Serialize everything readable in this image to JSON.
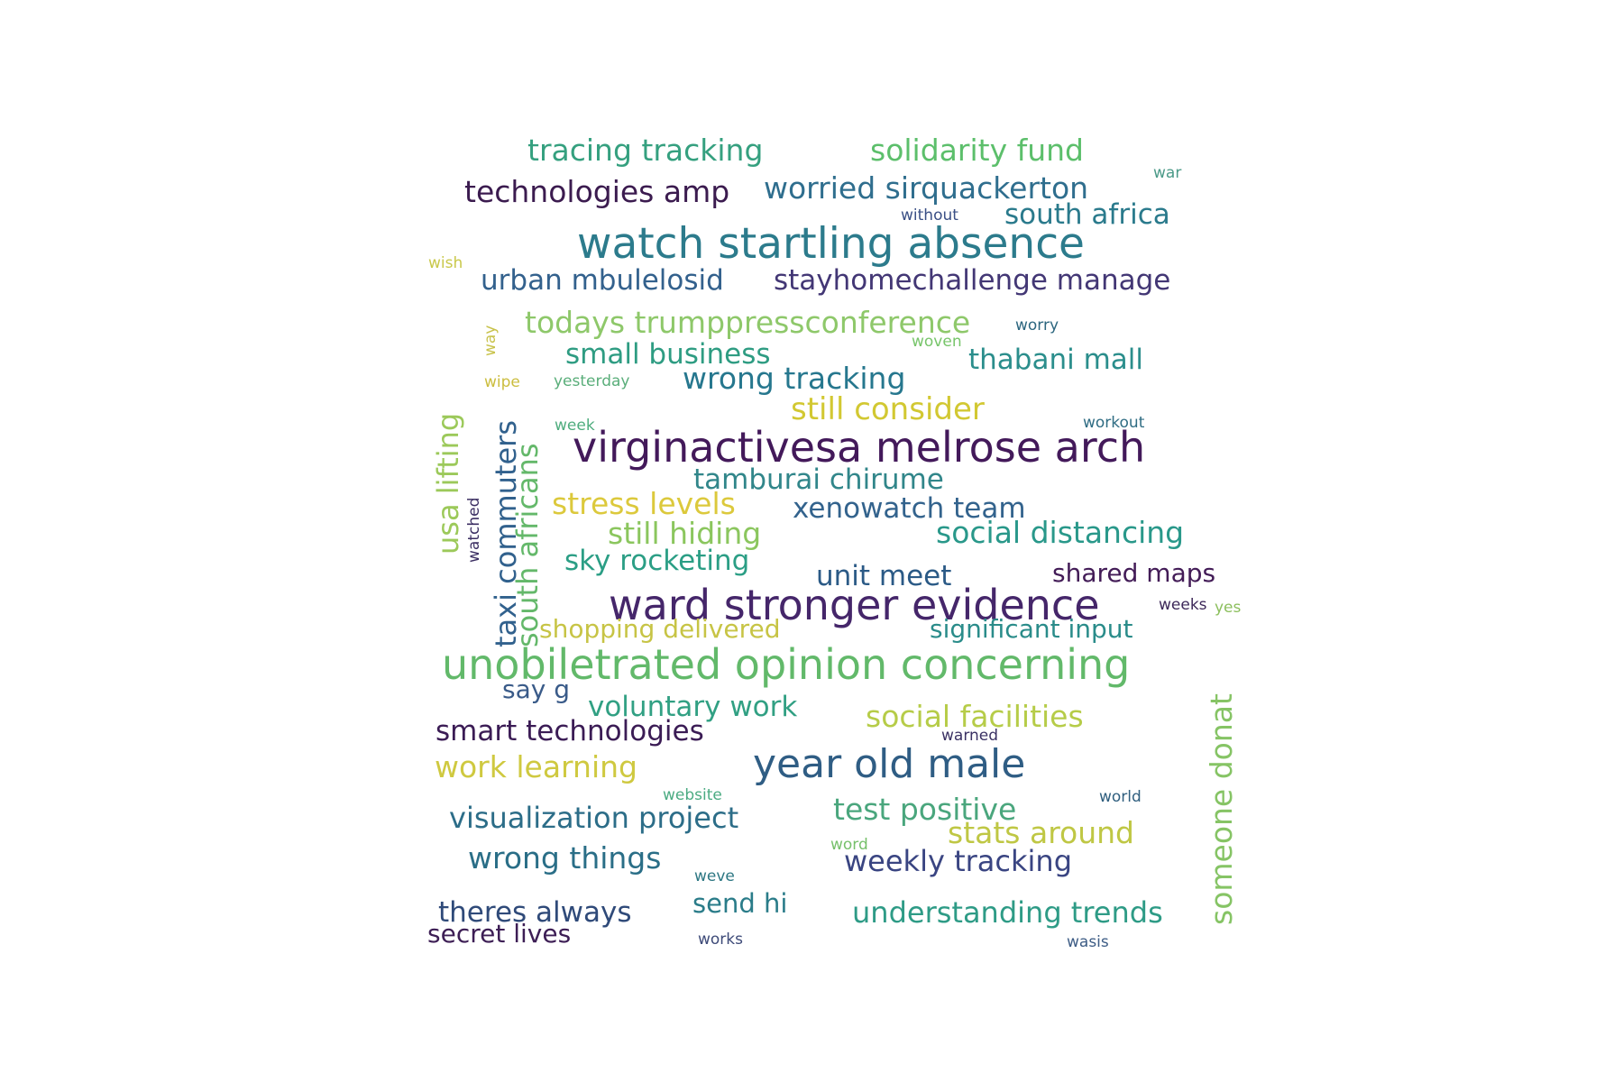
{
  "words": [
    {
      "text": "tracing tracking",
      "color": "#35a07f",
      "vertical": false
    },
    {
      "text": "solidarity fund",
      "color": "#5cbf6b",
      "vertical": false
    },
    {
      "text": "war",
      "color": "#4b9a88",
      "vertical": false
    },
    {
      "text": "technologies amp",
      "color": "#3b1b4f",
      "vertical": false
    },
    {
      "text": "worried sirquackerton",
      "color": "#2f6e8e",
      "vertical": false
    },
    {
      "text": "without",
      "color": "#3a4f85",
      "vertical": false
    },
    {
      "text": "south africa",
      "color": "#2a7a8c",
      "vertical": false
    },
    {
      "text": "watch startling absence",
      "color": "#2c7b8c",
      "vertical": false
    },
    {
      "text": "wish",
      "color": "#c9c84a",
      "vertical": false
    },
    {
      "text": "urban mbulelosid",
      "color": "#33618d",
      "vertical": false
    },
    {
      "text": "stayhomechallenge manage",
      "color": "#433775",
      "vertical": false
    },
    {
      "text": "todays trumppressconference",
      "color": "#8ec86a",
      "vertical": false
    },
    {
      "text": "worry",
      "color": "#2c667f",
      "vertical": false
    },
    {
      "text": "way",
      "color": "#c8c24a",
      "vertical": true
    },
    {
      "text": "woven",
      "color": "#77c56a",
      "vertical": false
    },
    {
      "text": "small business",
      "color": "#2e9c82",
      "vertical": false
    },
    {
      "text": "thabani mall",
      "color": "#2b8e8c",
      "vertical": false
    },
    {
      "text": "usa lifting",
      "color": "#9cc95a",
      "vertical": true
    },
    {
      "text": "wipe",
      "color": "#cbbd3e",
      "vertical": false
    },
    {
      "text": "yesterday",
      "color": "#5aae7a",
      "vertical": false
    },
    {
      "text": "wrong tracking",
      "color": "#26778e",
      "vertical": false
    },
    {
      "text": "still consider",
      "color": "#d2c832",
      "vertical": false
    },
    {
      "text": "week",
      "color": "#4fad7e",
      "vertical": false
    },
    {
      "text": "workout",
      "color": "#2f6c83",
      "vertical": false
    },
    {
      "text": "taxi commuters",
      "color": "#31618d",
      "vertical": true
    },
    {
      "text": "south africans",
      "color": "#64b86a",
      "vertical": true
    },
    {
      "text": "virginactivesa melrose arch",
      "color": "#43195a",
      "vertical": false
    },
    {
      "text": "tamburai chirume",
      "color": "#31868a",
      "vertical": false
    },
    {
      "text": "watched",
      "color": "#3b2e62",
      "vertical": true
    },
    {
      "text": "stress levels",
      "color": "#dcc93c",
      "vertical": false
    },
    {
      "text": "xenowatch team",
      "color": "#33638d",
      "vertical": false
    },
    {
      "text": "still hiding",
      "color": "#8bc65e",
      "vertical": false
    },
    {
      "text": "social distancing",
      "color": "#29988a",
      "vertical": false
    },
    {
      "text": "sky rocketing",
      "color": "#2b9e85",
      "vertical": false
    },
    {
      "text": "unit meet",
      "color": "#2b5a86",
      "vertical": false
    },
    {
      "text": "shared maps",
      "color": "#431c57",
      "vertical": false
    },
    {
      "text": "ward stronger evidence",
      "color": "#45266a",
      "vertical": false
    },
    {
      "text": "weeks",
      "color": "#3d2859",
      "vertical": false
    },
    {
      "text": "yes",
      "color": "#8cbf5d",
      "vertical": false
    },
    {
      "text": "shopping delivered",
      "color": "#c7c445",
      "vertical": false
    },
    {
      "text": "significant input",
      "color": "#2a8c8a",
      "vertical": false
    },
    {
      "text": "unobiletrated opinion concerning",
      "color": "#62b96a",
      "vertical": false
    },
    {
      "text": "say g",
      "color": "#3a5b89",
      "vertical": false
    },
    {
      "text": "voluntary work",
      "color": "#31a083",
      "vertical": false
    },
    {
      "text": "social facilities",
      "color": "#b6cc48",
      "vertical": false
    },
    {
      "text": "someone donat",
      "color": "#86c465",
      "vertical": true
    },
    {
      "text": "smart technologies",
      "color": "#3b1c55",
      "vertical": false
    },
    {
      "text": "warned",
      "color": "#3b3264",
      "vertical": false
    },
    {
      "text": "work learning",
      "color": "#cfc940",
      "vertical": false
    },
    {
      "text": "year old male",
      "color": "#2f5d84",
      "vertical": false
    },
    {
      "text": "website",
      "color": "#4bab82",
      "vertical": false
    },
    {
      "text": "world",
      "color": "#2f5e7e",
      "vertical": false
    },
    {
      "text": "visualization project",
      "color": "#2c6d88",
      "vertical": false
    },
    {
      "text": "test positive",
      "color": "#4aa67d",
      "vertical": false
    },
    {
      "text": "stats around",
      "color": "#bfc744",
      "vertical": false
    },
    {
      "text": "word",
      "color": "#76c06a",
      "vertical": false
    },
    {
      "text": "wrong things",
      "color": "#2a6e87",
      "vertical": false
    },
    {
      "text": "weekly tracking",
      "color": "#3a4582",
      "vertical": false
    },
    {
      "text": "weve",
      "color": "#2d7783",
      "vertical": false
    },
    {
      "text": "send hi",
      "color": "#2a7c89",
      "vertical": false
    },
    {
      "text": "theres always",
      "color": "#2f4a79",
      "vertical": false
    },
    {
      "text": "understanding trends",
      "color": "#2e9b86",
      "vertical": false
    },
    {
      "text": "secret lives",
      "color": "#3d1e55",
      "vertical": false
    },
    {
      "text": "works",
      "color": "#3d4a78",
      "vertical": false
    },
    {
      "text": "wasis",
      "color": "#3d5c85",
      "vertical": false
    }
  ]
}
